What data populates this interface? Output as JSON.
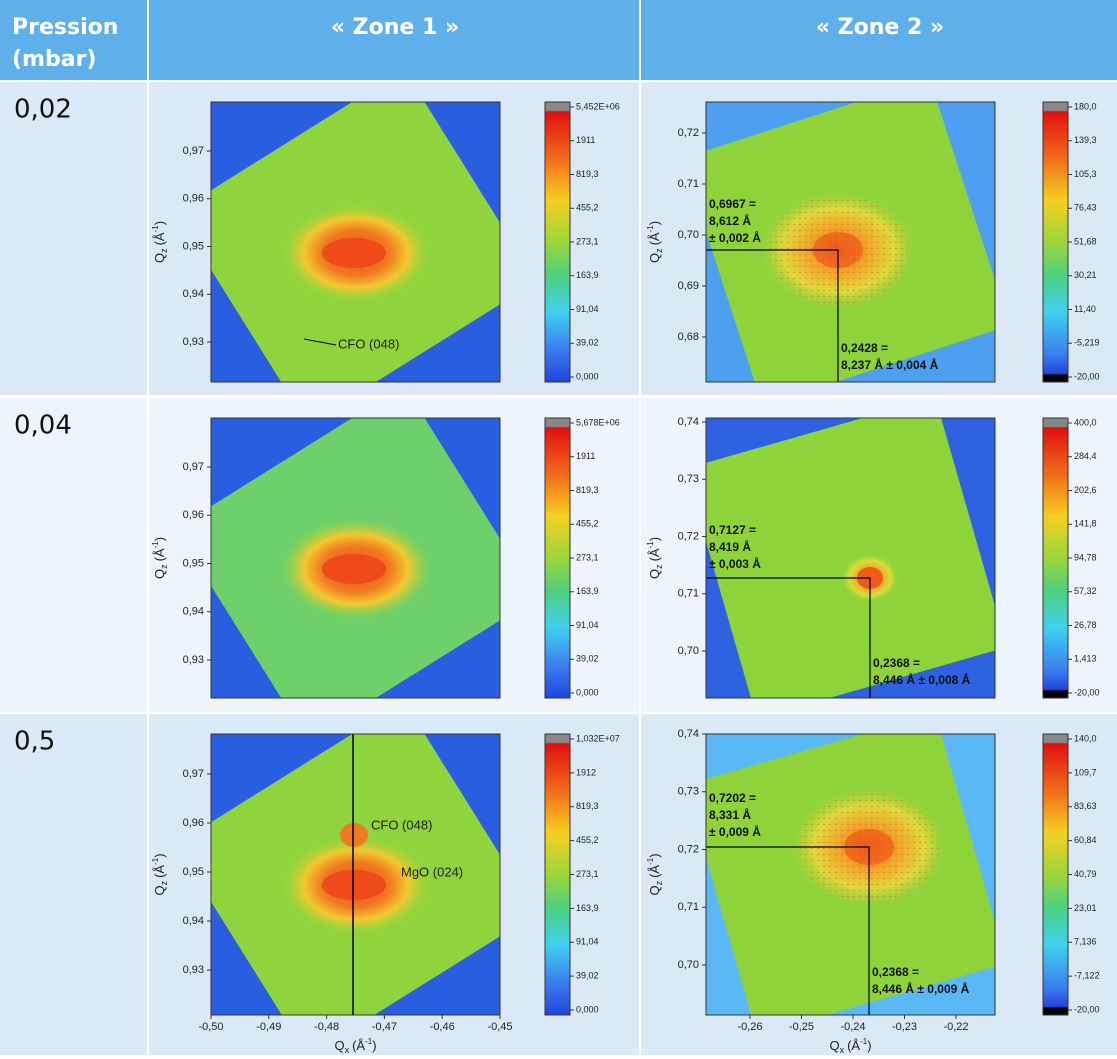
{
  "header": {
    "pressure": [
      "Pression",
      "(mbar)"
    ],
    "zone1": "« Zone 1 »",
    "zone2": "« Zone 2 »"
  },
  "axis_labels": {
    "y": {
      "symbol": "Q",
      "subscript": "z",
      "unit": "(Å",
      "exponent": "-1",
      "close": ")"
    },
    "x": {
      "symbol": "Q",
      "subscript": "x",
      "unit": "(Å",
      "exponent": "-1",
      "close": ")"
    }
  },
  "xticks": {
    "zone1": [
      "-0,50",
      "-0,49",
      "-0,48",
      "-0,47",
      "-0,46",
      "-0,45"
    ],
    "zone2": [
      "-0,26",
      "-0,25",
      "-0,24",
      "-0,23",
      "-0,22"
    ]
  },
  "rows": [
    {
      "pressure": "0,02",
      "zone1": {
        "yticks": [
          "0,97",
          "0,96",
          "0,95",
          "0,94",
          "0,93"
        ],
        "colorbar": [
          "5,452E+06",
          "1911",
          "819,3",
          "455,2",
          "273,1",
          "163,9",
          "91,04",
          "39,02",
          "0,000"
        ],
        "annotations": [
          "CFO (048)"
        ]
      },
      "zone2": {
        "yticks": [
          "0,72",
          "0,71",
          "0,70",
          "0,69",
          "0,68"
        ],
        "colorbar": [
          "180,0",
          "139,3",
          "105,3",
          "76,43",
          "51,68",
          "30,21",
          "11,40",
          "-5,219",
          "-20,00"
        ],
        "qz_label": [
          "0,6967 =",
          "8,612 Å",
          "± 0,002 Å"
        ],
        "qx_label": [
          "0,2428 =",
          "8,237 Å ± 0,004 Å"
        ]
      }
    },
    {
      "pressure": "0,04",
      "zone1": {
        "yticks": [
          "0,97",
          "0,96",
          "0,95",
          "0,94",
          "0,93"
        ],
        "colorbar": [
          "5,678E+06",
          "1911",
          "819,3",
          "455,2",
          "273,1",
          "163,9",
          "91,04",
          "39,02",
          "0,000"
        ],
        "annotations": []
      },
      "zone2": {
        "yticks": [
          "0,74",
          "0,73",
          "0,72",
          "0,71",
          "0,70"
        ],
        "colorbar": [
          "400,0",
          "284,4",
          "202,6",
          "141,8",
          "94,78",
          "57,32",
          "26,78",
          "1,413",
          "-20,00"
        ],
        "qz_label": [
          "0,7127 =",
          "8,419 Å",
          "± 0,003 Å"
        ],
        "qx_label": [
          "0,2368 =",
          "8,446 Å ± 0,008 Å"
        ]
      }
    },
    {
      "pressure": "0,5",
      "zone1": {
        "yticks": [
          "0,97",
          "0,96",
          "0,95",
          "0,94",
          "0,93"
        ],
        "colorbar": [
          "1,032E+07",
          "1912",
          "819,3",
          "455,2",
          "273,1",
          "163,9",
          "91,04",
          "39,02",
          "0,000"
        ],
        "annotations": [
          "CFO (048)",
          "MgO (024)"
        ]
      },
      "zone2": {
        "yticks": [
          "0,74",
          "0,73",
          "0,72",
          "0,71",
          "0,70"
        ],
        "colorbar": [
          "140,0",
          "109,7",
          "83,63",
          "60,84",
          "40,79",
          "23,01",
          "7,136",
          "-7,122",
          "-20,00"
        ],
        "qz_label": [
          "0,7202 =",
          "8,331 Å",
          "± 0,009 Å"
        ],
        "qx_label": [
          "0,2368 =",
          "8,446 Å ± 0,009 Å"
        ]
      }
    }
  ]
}
